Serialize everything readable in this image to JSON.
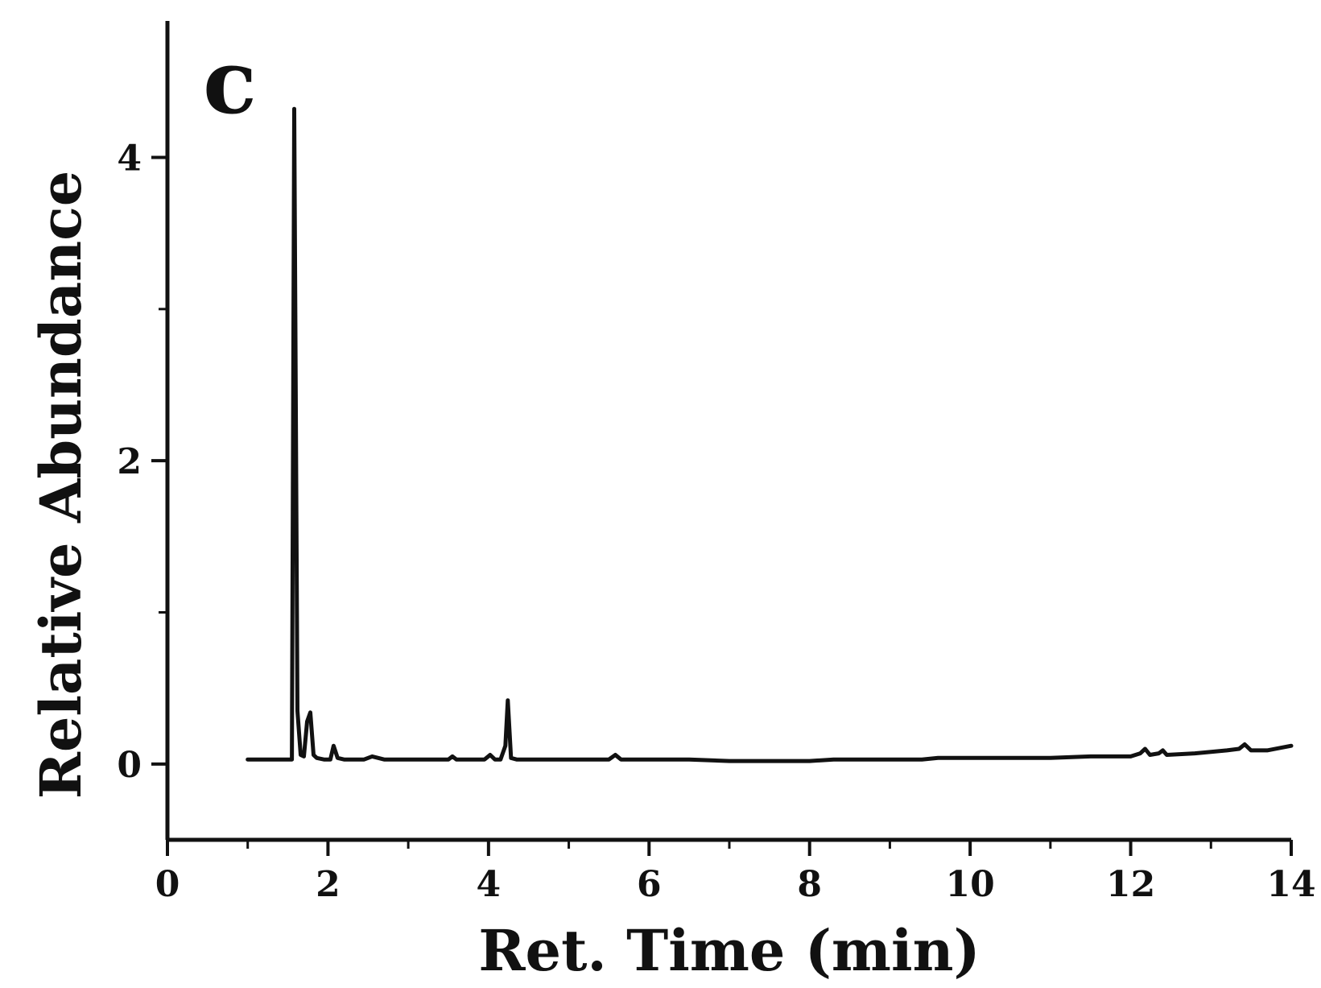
{
  "chart_data": {
    "type": "line",
    "panel_label": "c",
    "title": "",
    "xlabel": "Ret. Time (min)",
    "ylabel": "Relative Abundance",
    "xlim": [
      0,
      14
    ],
    "ylim": [
      -0.5,
      4.9
    ],
    "x_ticks": [
      0,
      2,
      4,
      6,
      8,
      10,
      12,
      14
    ],
    "y_ticks": [
      0,
      2,
      4
    ],
    "grid": false,
    "legend": "none",
    "line_color": "#111111",
    "series": [
      {
        "name": "",
        "x": [
          1.0,
          1.3,
          1.5,
          1.55,
          1.58,
          1.62,
          1.66,
          1.7,
          1.74,
          1.78,
          1.82,
          1.86,
          1.95,
          2.03,
          2.07,
          2.12,
          2.2,
          2.45,
          2.55,
          2.7,
          3.5,
          3.55,
          3.6,
          3.95,
          4.02,
          4.08,
          4.15,
          4.21,
          4.24,
          4.28,
          4.35,
          4.5,
          4.8,
          5.0,
          5.5,
          5.58,
          5.65,
          6.5,
          7.0,
          8.0,
          8.3,
          9.0,
          9.4,
          9.6,
          10.0,
          11.0,
          11.5,
          12.0,
          12.12,
          12.18,
          12.24,
          12.35,
          12.4,
          12.45,
          12.8,
          13.0,
          13.2,
          13.35,
          13.42,
          13.5,
          13.7,
          14.0
        ],
        "y": [
          0.03,
          0.03,
          0.03,
          0.03,
          4.32,
          0.35,
          0.06,
          0.05,
          0.28,
          0.34,
          0.06,
          0.04,
          0.03,
          0.03,
          0.12,
          0.04,
          0.03,
          0.03,
          0.05,
          0.03,
          0.03,
          0.05,
          0.03,
          0.03,
          0.06,
          0.03,
          0.03,
          0.12,
          0.42,
          0.04,
          0.03,
          0.03,
          0.03,
          0.03,
          0.03,
          0.06,
          0.03,
          0.03,
          0.02,
          0.02,
          0.03,
          0.03,
          0.03,
          0.04,
          0.04,
          0.04,
          0.05,
          0.05,
          0.07,
          0.1,
          0.06,
          0.07,
          0.09,
          0.06,
          0.07,
          0.08,
          0.09,
          0.1,
          0.13,
          0.09,
          0.09,
          0.12
        ]
      }
    ]
  }
}
